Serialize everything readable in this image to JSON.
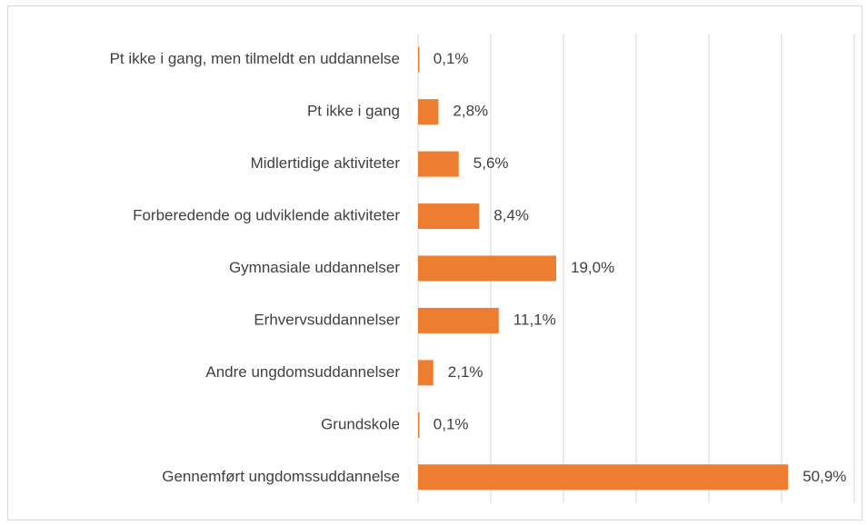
{
  "chart_data": {
    "type": "bar",
    "orientation": "horizontal",
    "categories": [
      "Pt ikke i gang, men tilmeldt en uddannelse",
      "Pt ikke i gang",
      "Midlertidige aktiviteter",
      "Forberedende og udviklende aktiviteter",
      "Gymnasiale uddannelser",
      "Erhvervsuddannelser",
      "Andre  ungdomsuddannelser",
      "Grundskole",
      "Gennemført ungdomssuddannelse"
    ],
    "values": [
      0.1,
      2.8,
      5.6,
      8.4,
      19.0,
      11.1,
      2.1,
      0.1,
      50.9
    ],
    "value_labels": [
      "0,1%",
      "2,8%",
      "5,6%",
      "8,4%",
      "19,0%",
      "11,1%",
      "2,1%",
      "0,1%",
      "50,9%"
    ],
    "color": "#ed7d31",
    "xlim": [
      0,
      60
    ],
    "xticks": [
      0,
      10,
      20,
      30,
      40,
      50,
      60
    ],
    "grid": true
  }
}
